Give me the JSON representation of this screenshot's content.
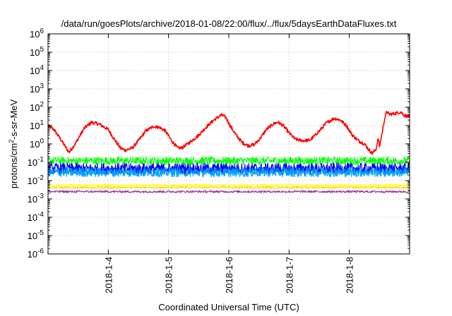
{
  "chart_data": {
    "type": "line",
    "title": "/data/run/goesPlots/archive/2018-01-08/22:00/flux/../flux/5daysEarthDataFluxes.txt",
    "xlabel": "Coordinated Universal Time (UTC)",
    "ylabel_parts": {
      "base": "protons/cm",
      "sup": "2",
      "rest": "-s-sr-MeV"
    },
    "y_scale": "log",
    "ylim": [
      1e-06,
      1000000.0
    ],
    "y_ticks": [
      {
        "value": -6,
        "base": "10",
        "exp": "-6"
      },
      {
        "value": -5,
        "base": "10",
        "exp": "-5"
      },
      {
        "value": -4,
        "base": "10",
        "exp": "-4"
      },
      {
        "value": -3,
        "base": "10",
        "exp": "-3"
      },
      {
        "value": -2,
        "base": "10",
        "exp": "-2"
      },
      {
        "value": -1,
        "base": "10",
        "exp": "-1"
      },
      {
        "value": 0,
        "base": "10",
        "exp": "0"
      },
      {
        "value": 1,
        "base": "10",
        "exp": "1"
      },
      {
        "value": 2,
        "base": "10",
        "exp": "2"
      },
      {
        "value": 3,
        "base": "10",
        "exp": "3"
      },
      {
        "value": 4,
        "base": "10",
        "exp": "4"
      },
      {
        "value": 5,
        "base": "10",
        "exp": "5"
      },
      {
        "value": 6,
        "base": "10",
        "exp": "6"
      }
    ],
    "x_range_days": [
      3.0,
      9.0
    ],
    "x_ticks": [
      {
        "day": 4,
        "label": "2018-1-4"
      },
      {
        "day": 5,
        "label": "2018-1-5"
      },
      {
        "day": 6,
        "label": "2018-1-6"
      },
      {
        "day": 7,
        "label": "2018-1-7"
      },
      {
        "day": 8,
        "label": "2018-1-8"
      }
    ],
    "grid": true,
    "legend": "none",
    "series": [
      {
        "color": "#ff0000",
        "noise": 0.09,
        "anchors": [
          [
            3.0,
            10
          ],
          [
            3.1,
            6
          ],
          [
            3.2,
            2
          ],
          [
            3.3,
            0.6
          ],
          [
            3.35,
            0.35
          ],
          [
            3.45,
            1
          ],
          [
            3.6,
            7
          ],
          [
            3.72,
            15
          ],
          [
            3.85,
            12
          ],
          [
            4.0,
            6
          ],
          [
            4.1,
            1.8
          ],
          [
            4.2,
            0.6
          ],
          [
            4.28,
            0.45
          ],
          [
            4.4,
            0.6
          ],
          [
            4.5,
            1.5
          ],
          [
            4.62,
            5
          ],
          [
            4.75,
            9
          ],
          [
            4.85,
            8
          ],
          [
            4.95,
            5
          ],
          [
            5.05,
            1.5
          ],
          [
            5.15,
            0.6
          ],
          [
            5.22,
            0.6
          ],
          [
            5.35,
            1.2
          ],
          [
            5.5,
            3
          ],
          [
            5.62,
            8
          ],
          [
            5.75,
            20
          ],
          [
            5.88,
            38
          ],
          [
            5.95,
            28
          ],
          [
            6.02,
            10
          ],
          [
            6.12,
            3
          ],
          [
            6.22,
            1.2
          ],
          [
            6.32,
            0.8
          ],
          [
            6.42,
            0.9
          ],
          [
            6.52,
            2
          ],
          [
            6.62,
            6
          ],
          [
            6.75,
            13
          ],
          [
            6.82,
            15
          ],
          [
            6.9,
            10
          ],
          [
            7.0,
            4
          ],
          [
            7.1,
            1.8
          ],
          [
            7.22,
            1.5
          ],
          [
            7.35,
            1.6
          ],
          [
            7.5,
            5
          ],
          [
            7.62,
            14
          ],
          [
            7.75,
            25
          ],
          [
            7.85,
            20
          ],
          [
            7.95,
            10
          ],
          [
            8.05,
            3
          ],
          [
            8.15,
            1.5
          ],
          [
            8.25,
            1
          ],
          [
            8.32,
            0.5
          ],
          [
            8.38,
            0.3
          ],
          [
            8.44,
            0.5
          ],
          [
            8.48,
            2
          ],
          [
            8.5,
            0.7
          ],
          [
            8.55,
            5
          ],
          [
            8.58,
            20
          ],
          [
            8.62,
            60
          ],
          [
            8.66,
            40
          ],
          [
            8.75,
            45
          ],
          [
            8.85,
            55
          ],
          [
            8.92,
            35
          ],
          [
            9.0,
            30
          ]
        ]
      },
      {
        "color": "#00ff00",
        "noise": 0.22,
        "anchors": [
          [
            3.0,
            0.12
          ],
          [
            9.0,
            0.12
          ]
        ]
      },
      {
        "color": "#00c8c8",
        "noise": 0.2,
        "anchors": [
          [
            3.0,
            0.035
          ],
          [
            9.0,
            0.035
          ]
        ]
      },
      {
        "color": "#0000ff",
        "noise": 0.3,
        "anchors": [
          [
            3.0,
            0.045
          ],
          [
            9.0,
            0.045
          ]
        ]
      },
      {
        "color": "#00a0ff",
        "noise": 0.25,
        "anchors": [
          [
            3.0,
            0.028
          ],
          [
            9.0,
            0.028
          ]
        ]
      },
      {
        "color": "#ffff00",
        "noise": 0.05,
        "anchors": [
          [
            3.0,
            0.0055
          ],
          [
            9.0,
            0.0055
          ]
        ]
      },
      {
        "color": "#ffd700",
        "noise": 0.05,
        "anchors": [
          [
            3.0,
            0.0042
          ],
          [
            9.0,
            0.0042
          ]
        ]
      },
      {
        "color": "#993399",
        "noise": 0.06,
        "anchors": [
          [
            3.0,
            0.0025
          ],
          [
            9.0,
            0.0025
          ]
        ]
      }
    ]
  }
}
